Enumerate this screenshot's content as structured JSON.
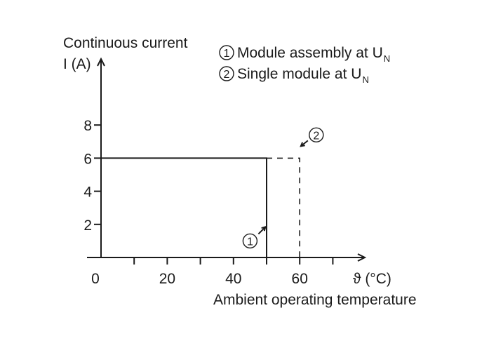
{
  "chart_data": {
    "type": "line",
    "ylabel_line1": "Continuous current",
    "ylabel_line2": "I (A)",
    "xlabel": "Ambient operating temperature",
    "x_unit_label": "ϑ (°C)",
    "xlim": [
      0,
      80
    ],
    "ylim": [
      0,
      10
    ],
    "x_major_ticks": [
      0,
      20,
      40,
      60
    ],
    "x_minor_ticks": [
      10,
      30,
      50,
      70
    ],
    "y_ticks": [
      2,
      4,
      6,
      8
    ],
    "legend": [
      {
        "marker": "1",
        "text": "Module assembly at U",
        "subscript": "N"
      },
      {
        "marker": "2",
        "text": "Single module at U",
        "subscript": "N"
      }
    ],
    "series": [
      {
        "marker": "1",
        "style": "solid",
        "x": [
          0,
          50,
          50
        ],
        "y": [
          6,
          6,
          0
        ]
      },
      {
        "marker": "2",
        "style": "dashed",
        "x": [
          50,
          60,
          60
        ],
        "y": [
          6,
          6,
          0
        ]
      }
    ],
    "annotations": [
      {
        "marker": "1",
        "x": 45,
        "y": 1
      },
      {
        "marker": "2",
        "x": 65,
        "y": 7.4
      }
    ]
  }
}
